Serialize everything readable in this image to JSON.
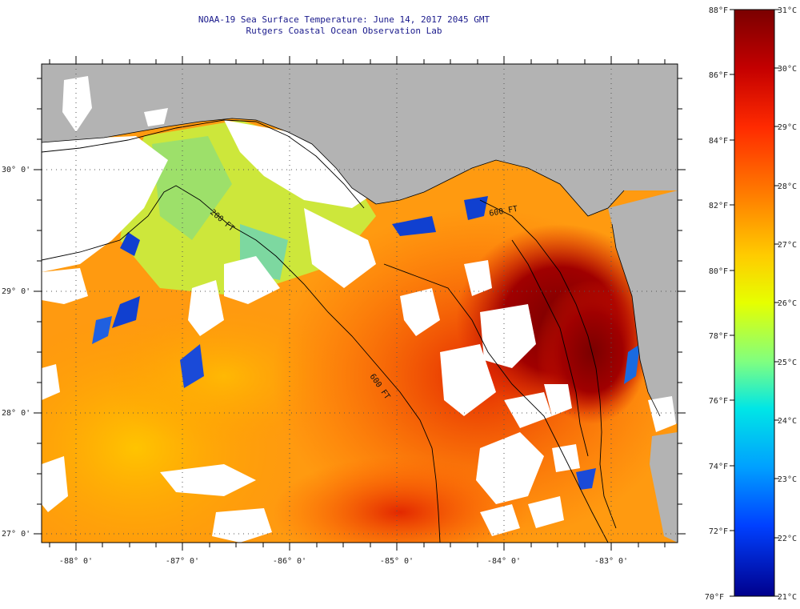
{
  "header": {
    "title_line1": "NOAA-19 Sea Surface Temperature:  June 14, 2017 2045 GMT",
    "title_line2": "Rutgers Coastal Ocean Observation Lab"
  },
  "map": {
    "lat_labels": [
      "30° 0'",
      "29° 0'",
      "28° 0'",
      "27° 0'"
    ],
    "lon_labels": [
      "-88° 0'",
      "-87° 0'",
      "-86° 0'",
      "-85° 0'",
      "-84° 0'",
      "-83° 0'"
    ],
    "contour_labels": [
      "200 FT",
      "600 FT",
      "600 FT"
    ],
    "colors": {
      "land": "#b3b3b3",
      "cloud": "#ffffff"
    }
  },
  "colorbar": {
    "f_labels": [
      "88°F",
      "86°F",
      "84°F",
      "82°F",
      "80°F",
      "78°F",
      "76°F",
      "74°F",
      "72°F",
      "70°F"
    ],
    "c_labels": [
      "31°C",
      "30°C",
      "29°C",
      "28°C",
      "27°C",
      "26°C",
      "25°C",
      "24°C",
      "23°C",
      "22°C",
      "21°C"
    ]
  }
}
